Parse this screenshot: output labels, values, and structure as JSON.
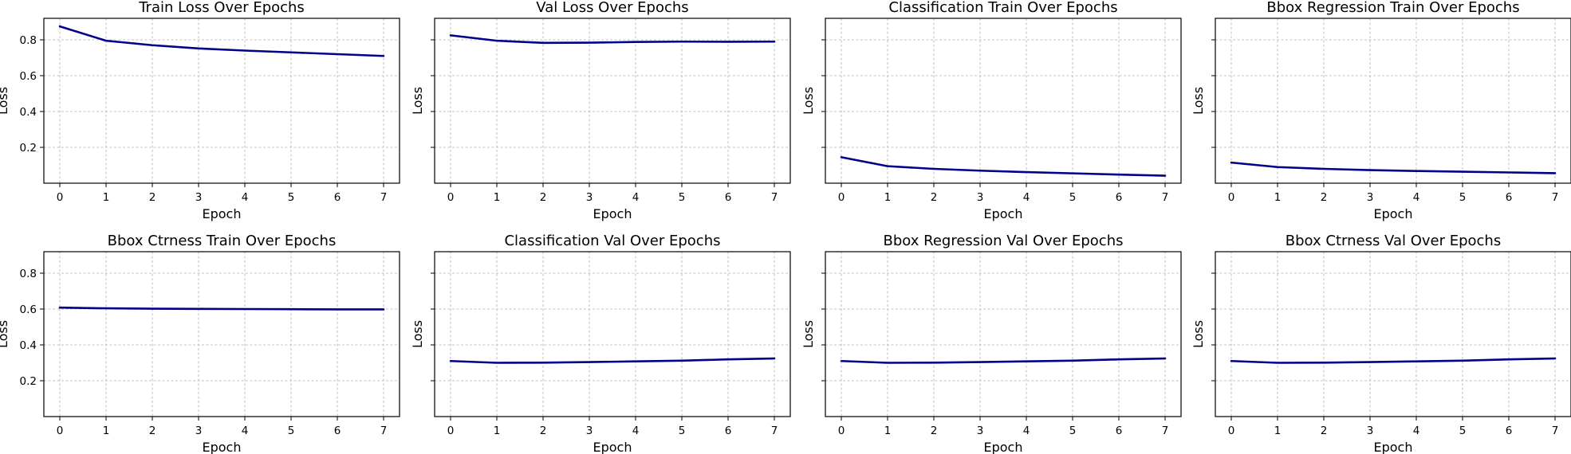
{
  "chart_data": [
    {
      "type": "line",
      "title": "Train Loss Over Epochs",
      "xlabel": "Epoch",
      "ylabel": "Loss",
      "show_ytick_labels": true,
      "x": [
        0,
        1,
        2,
        3,
        4,
        5,
        6,
        7
      ],
      "xticks": [
        "0",
        "1",
        "2",
        "3",
        "4",
        "5",
        "6",
        "7"
      ],
      "yticks": [
        0.2,
        0.4,
        0.6,
        0.8
      ],
      "ylim": [
        0.0,
        0.92
      ],
      "grid": true,
      "series": [
        {
          "values": [
            0.875,
            0.795,
            0.77,
            0.752,
            0.74,
            0.73,
            0.72,
            0.71
          ]
        }
      ]
    },
    {
      "type": "line",
      "title": "Val Loss Over Epochs",
      "xlabel": "Epoch",
      "ylabel": "Loss",
      "show_ytick_labels": false,
      "x": [
        0,
        1,
        2,
        3,
        4,
        5,
        6,
        7
      ],
      "xticks": [
        "0",
        "1",
        "2",
        "3",
        "4",
        "5",
        "6",
        "7"
      ],
      "yticks": [
        0.2,
        0.4,
        0.6,
        0.8
      ],
      "ylim": [
        0.0,
        0.92
      ],
      "grid": true,
      "series": [
        {
          "values": [
            0.825,
            0.795,
            0.783,
            0.784,
            0.788,
            0.79,
            0.789,
            0.79
          ]
        }
      ]
    },
    {
      "type": "line",
      "title": "Classification Train Over Epochs",
      "xlabel": "Epoch",
      "ylabel": "Loss",
      "show_ytick_labels": false,
      "x": [
        0,
        1,
        2,
        3,
        4,
        5,
        6,
        7
      ],
      "xticks": [
        "0",
        "1",
        "2",
        "3",
        "4",
        "5",
        "6",
        "7"
      ],
      "yticks": [
        0.2,
        0.4,
        0.6,
        0.8
      ],
      "ylim": [
        0.0,
        0.92
      ],
      "grid": true,
      "series": [
        {
          "values": [
            0.145,
            0.095,
            0.08,
            0.07,
            0.062,
            0.055,
            0.048,
            0.042
          ]
        }
      ]
    },
    {
      "type": "line",
      "title": "Bbox Regression Train Over Epochs",
      "xlabel": "Epoch",
      "ylabel": "Loss",
      "show_ytick_labels": false,
      "x": [
        0,
        1,
        2,
        3,
        4,
        5,
        6,
        7
      ],
      "xticks": [
        "0",
        "1",
        "2",
        "3",
        "4",
        "5",
        "6",
        "7"
      ],
      "yticks": [
        0.2,
        0.4,
        0.6,
        0.8
      ],
      "ylim": [
        0.0,
        0.92
      ],
      "grid": true,
      "series": [
        {
          "values": [
            0.115,
            0.09,
            0.08,
            0.073,
            0.068,
            0.064,
            0.06,
            0.056
          ]
        }
      ]
    },
    {
      "type": "line",
      "title": "Bbox Ctrness Train Over Epochs",
      "xlabel": "Epoch",
      "ylabel": "Loss",
      "show_ytick_labels": true,
      "x": [
        0,
        1,
        2,
        3,
        4,
        5,
        6,
        7
      ],
      "xticks": [
        "0",
        "1",
        "2",
        "3",
        "4",
        "5",
        "6",
        "7"
      ],
      "yticks": [
        0.2,
        0.4,
        0.6,
        0.8
      ],
      "ylim": [
        0.0,
        0.92
      ],
      "grid": true,
      "series": [
        {
          "values": [
            0.608,
            0.604,
            0.602,
            0.601,
            0.6,
            0.599,
            0.598,
            0.598
          ]
        }
      ]
    },
    {
      "type": "line",
      "title": "Classification Val Over Epochs",
      "xlabel": "Epoch",
      "ylabel": "Loss",
      "show_ytick_labels": false,
      "x": [
        0,
        1,
        2,
        3,
        4,
        5,
        6,
        7
      ],
      "xticks": [
        "0",
        "1",
        "2",
        "3",
        "4",
        "5",
        "6",
        "7"
      ],
      "yticks": [
        0.2,
        0.4,
        0.6,
        0.8
      ],
      "ylim": [
        0.0,
        0.92
      ],
      "grid": true,
      "series": [
        {
          "values": [
            0.31,
            0.3,
            0.301,
            0.304,
            0.308,
            0.312,
            0.319,
            0.324
          ]
        }
      ]
    },
    {
      "type": "line",
      "title": "Bbox Regression Val Over Epochs",
      "xlabel": "Epoch",
      "ylabel": "Loss",
      "show_ytick_labels": false,
      "x": [
        0,
        1,
        2,
        3,
        4,
        5,
        6,
        7
      ],
      "xticks": [
        "0",
        "1",
        "2",
        "3",
        "4",
        "5",
        "6",
        "7"
      ],
      "yticks": [
        0.2,
        0.4,
        0.6,
        0.8
      ],
      "ylim": [
        0.0,
        0.92
      ],
      "grid": true,
      "series": [
        {
          "values": [
            0.31,
            0.3,
            0.301,
            0.304,
            0.308,
            0.312,
            0.319,
            0.324
          ]
        }
      ]
    },
    {
      "type": "line",
      "title": "Bbox Ctrness Val Over Epochs",
      "xlabel": "Epoch",
      "ylabel": "Loss",
      "show_ytick_labels": false,
      "x": [
        0,
        1,
        2,
        3,
        4,
        5,
        6,
        7
      ],
      "xticks": [
        "0",
        "1",
        "2",
        "3",
        "4",
        "5",
        "6",
        "7"
      ],
      "yticks": [
        0.2,
        0.4,
        0.6,
        0.8
      ],
      "ylim": [
        0.0,
        0.92
      ],
      "grid": true,
      "series": [
        {
          "values": [
            0.31,
            0.3,
            0.301,
            0.304,
            0.308,
            0.312,
            0.319,
            0.324
          ]
        }
      ]
    }
  ],
  "colors": {
    "line": "#00008b",
    "frame": "#000000",
    "grid": "#b0b0b0"
  }
}
